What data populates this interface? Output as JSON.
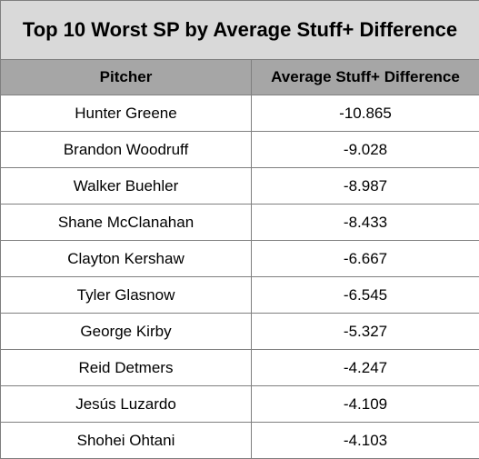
{
  "chart_data": {
    "type": "table",
    "title": "Top 10 Worst SP by Average Stuff+ Difference",
    "columns": [
      "Pitcher",
      "Average Stuff+ Difference"
    ],
    "rows": [
      {
        "pitcher": "Hunter Greene",
        "value": "-10.865"
      },
      {
        "pitcher": "Brandon Woodruff",
        "value": "-9.028"
      },
      {
        "pitcher": "Walker Buehler",
        "value": "-8.987"
      },
      {
        "pitcher": "Shane McClanahan",
        "value": "-8.433"
      },
      {
        "pitcher": "Clayton Kershaw",
        "value": "-6.667"
      },
      {
        "pitcher": "Tyler Glasnow",
        "value": "-6.545"
      },
      {
        "pitcher": "George Kirby",
        "value": "-5.327"
      },
      {
        "pitcher": "Reid Detmers",
        "value": "-4.247"
      },
      {
        "pitcher": "Jesús Luzardo",
        "value": "-4.109"
      },
      {
        "pitcher": "Shohei Ohtani",
        "value": "-4.103"
      }
    ]
  },
  "colors": {
    "title_bg": "#d9d9d9",
    "header_bg": "#a6a6a6",
    "border": "#7f7f7f",
    "body_bg": "#ffffff"
  }
}
